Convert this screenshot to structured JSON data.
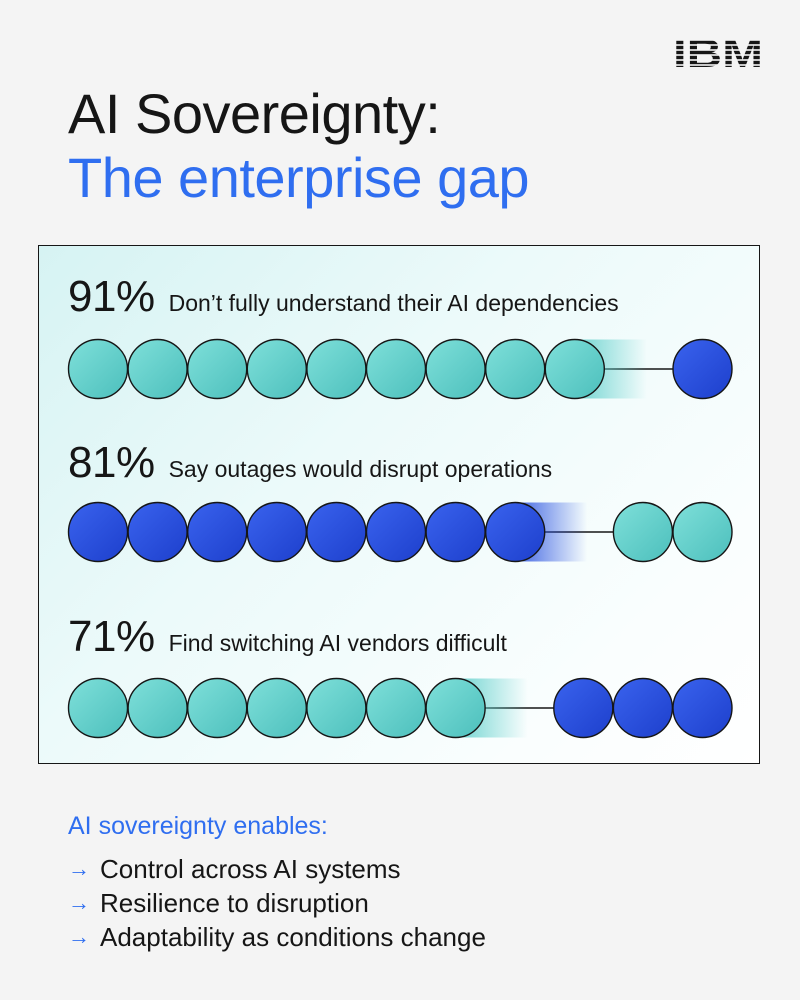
{
  "brand": {
    "logo_text": "IBM"
  },
  "title": {
    "line1": "AI Sovereignty:",
    "line2": "The enterprise gap"
  },
  "colors": {
    "teal": "#5fcfcb",
    "blue": "#2a52e0",
    "accent_text": "#2f6ef0"
  },
  "stats": [
    {
      "pct": "91%",
      "desc": "Don’t fully understand their AI dependencies",
      "value": 91,
      "filled": 9,
      "total": 10,
      "first_color": "teal",
      "second_color": "blue"
    },
    {
      "pct": "81%",
      "desc": "Say outages would disrupt operations",
      "value": 81,
      "filled": 8,
      "total": 10,
      "first_color": "blue",
      "second_color": "teal"
    },
    {
      "pct": "71%",
      "desc": "Find switching AI vendors difficult",
      "value": 71,
      "filled": 7,
      "total": 10,
      "first_color": "teal",
      "second_color": "blue"
    }
  ],
  "enables": {
    "title": "AI sovereignty enables:",
    "arrow_glyph": "→",
    "items": [
      "Control across AI systems",
      "Resilience to disruption",
      "Adaptability as conditions change"
    ]
  }
}
